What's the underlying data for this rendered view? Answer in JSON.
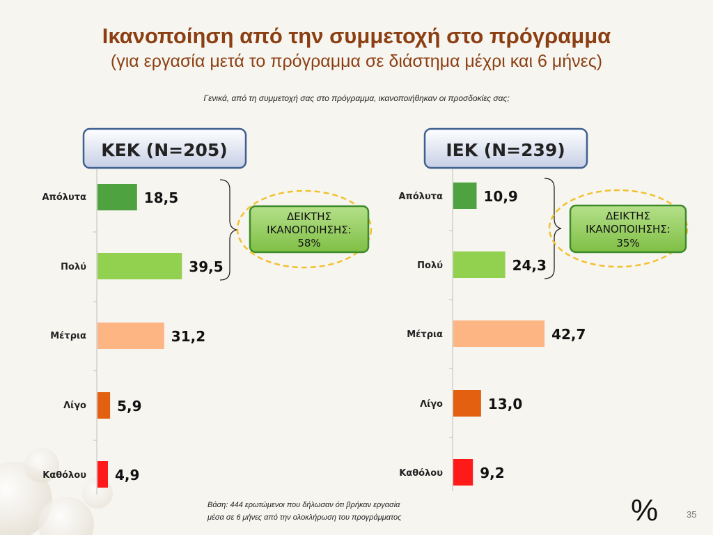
{
  "slide": {
    "title": "Ικανοποίηση από την συμμετοχή στο πρόγραμμα",
    "subtitle": "(για εργασία μετά το πρόγραμμα σε διάστημα μέχρι και 6 μήνες)",
    "question": "Γενικά, από τη συμμετοχή σας στο πρόγραμμα, ικανοποιήθηκαν  οι προσδοκίες σας;",
    "base_note_line1": "Βάση: 444 ερωτώμενοι που δήλωσαν ότι βρήκαν εργασία",
    "base_note_line2": "μέσα σε 6 μήνες από την ολοκλήρωση του προγράμματος",
    "percent_sign": "%",
    "page_number": "35"
  },
  "colors": {
    "apolyta": "#4ea23f",
    "poly": "#92d050",
    "metria": "#fdb584",
    "ligo": "#e2600f",
    "katholou": "#ff1a1a",
    "title": "#8b3f12",
    "index_box": "#92d050",
    "index_border": "#3c8a2a",
    "highlight_ellipse": "#f2c12e"
  },
  "chart_data": [
    {
      "type": "bar",
      "title": "ΚΕΚ (N=205)",
      "categories": [
        "Απόλυτα",
        "Πολύ",
        "Μέτρια",
        "Λίγο",
        "Καθόλου"
      ],
      "values": [
        18.5,
        39.5,
        31.2,
        5.9,
        4.9
      ],
      "value_labels": [
        "18,5",
        "39,5",
        "31,2",
        "5,9",
        "4,9"
      ],
      "orientation": "horizontal",
      "xlim": [
        0,
        50
      ],
      "index_label_line1": "ΔΕΙΚΤΗΣ",
      "index_label_line2": "ΙΚΑΝΟΠΟΙΗΣΗΣ:",
      "index_value": "58%"
    },
    {
      "type": "bar",
      "title": "ΙΕΚ (N=239)",
      "categories": [
        "Απόλυτα",
        "Πολύ",
        "Μέτρια",
        "Λίγο",
        "Καθόλου"
      ],
      "values": [
        10.9,
        24.3,
        42.7,
        13.0,
        9.2
      ],
      "value_labels": [
        "10,9",
        "24,3",
        "42,7",
        "13,0",
        "9,2"
      ],
      "orientation": "horizontal",
      "xlim": [
        0,
        50
      ],
      "index_label_line1": "ΔΕΙΚΤΗΣ",
      "index_label_line2": "ΙΚΑΝΟΠΟΙΗΣΗΣ:",
      "index_value": "35%"
    }
  ]
}
